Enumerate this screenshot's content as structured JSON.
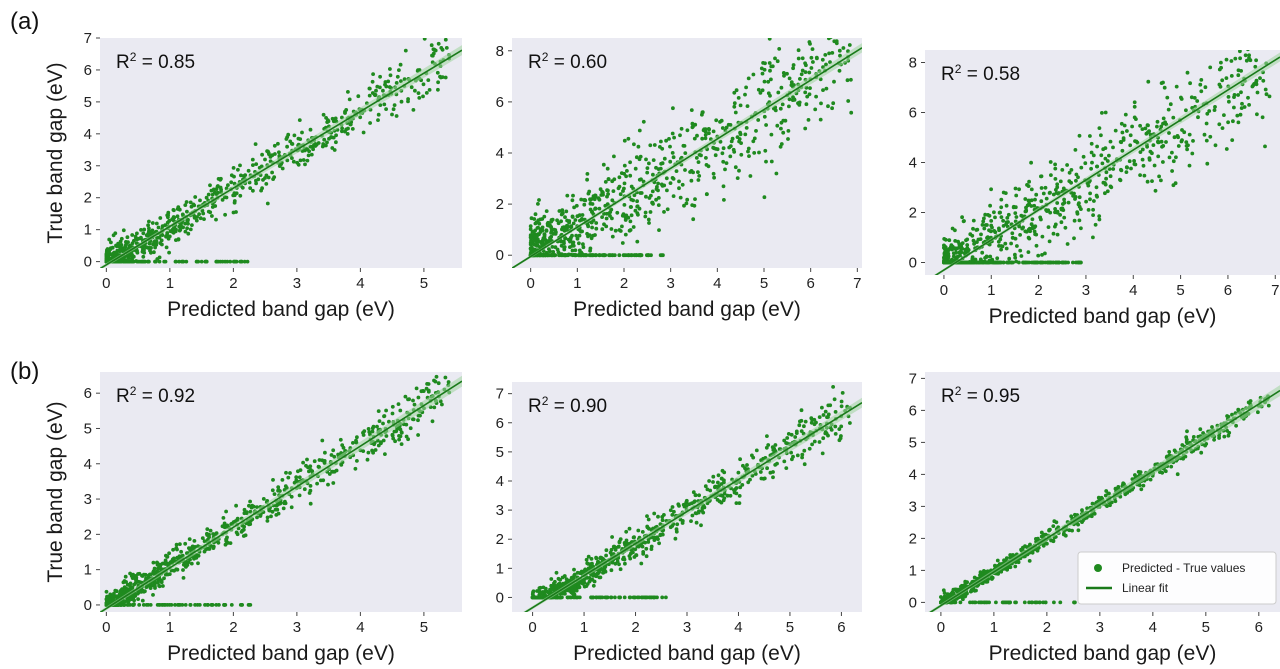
{
  "panel_labels": [
    "(a)",
    "(b)"
  ],
  "colors": {
    "points": "#1f8a1f",
    "fit_line": "#1a7a1a",
    "band": "#9fd39f",
    "plot_bg": "#eaeaf2"
  },
  "legend": {
    "points_label": "Predicted - True values",
    "line_label": "Linear fit"
  },
  "chart_data": [
    {
      "type": "scatter",
      "row": "a",
      "title": "",
      "annotation": "R² = 0.85",
      "r2_text": "0.85",
      "xlabel": "Predicted band gap (eV)",
      "ylabel": "True band gap (eV)",
      "xlim": [
        -0.1,
        5.6
      ],
      "ylim": [
        -0.2,
        7.0
      ],
      "xticks": [
        0,
        1,
        2,
        3,
        4,
        5
      ],
      "yticks": [
        0,
        1,
        2,
        3,
        4,
        5,
        6,
        7
      ],
      "fit": {
        "slope": 1.2,
        "intercept": -0.1
      },
      "n_points": 850,
      "max_x": 5.4,
      "noise": 0.38,
      "zero_frac": 0.09,
      "grid": false,
      "legend": false
    },
    {
      "type": "scatter",
      "row": "a",
      "title": "",
      "annotation": "R² = 0.60",
      "r2_text": "0.60",
      "xlabel": "Predicted band gap (eV)",
      "ylabel": "",
      "xlim": [
        -0.4,
        7.1
      ],
      "ylim": [
        -0.5,
        8.5
      ],
      "xticks": [
        0,
        1,
        2,
        3,
        4,
        5,
        6,
        7
      ],
      "yticks": [
        0,
        2,
        4,
        6,
        8
      ],
      "fit": {
        "slope": 1.15,
        "intercept": -0.05
      },
      "n_points": 950,
      "max_x": 6.9,
      "noise": 1.05,
      "zero_frac": 0.14,
      "grid": false,
      "legend": false
    },
    {
      "type": "scatter",
      "row": "a",
      "title": "",
      "annotation": "R² = 0.58",
      "r2_text": "0.58",
      "xlabel": "Predicted band gap (eV)",
      "ylabel": "",
      "xlim": [
        -0.4,
        7.1
      ],
      "ylim": [
        -0.5,
        8.5
      ],
      "xticks": [
        0,
        1,
        2,
        3,
        4,
        5,
        6,
        7
      ],
      "yticks": [
        0,
        2,
        4,
        6,
        8
      ],
      "fit": {
        "slope": 1.2,
        "intercept": -0.3
      },
      "n_points": 950,
      "max_x": 6.9,
      "noise": 1.1,
      "zero_frac": 0.14,
      "grid": false,
      "legend": false
    },
    {
      "type": "scatter",
      "row": "b",
      "title": "",
      "annotation": "R² = 0.92",
      "r2_text": "0.92",
      "xlabel": "Predicted band gap (eV)",
      "ylabel": "True band gap (eV)",
      "xlim": [
        -0.1,
        5.6
      ],
      "ylim": [
        -0.2,
        6.6
      ],
      "xticks": [
        0,
        1,
        2,
        3,
        4,
        5
      ],
      "yticks": [
        0,
        1,
        2,
        3,
        4,
        5,
        6
      ],
      "fit": {
        "slope": 1.15,
        "intercept": -0.1
      },
      "n_points": 900,
      "max_x": 5.4,
      "noise": 0.28,
      "zero_frac": 0.07,
      "grid": false,
      "legend": false
    },
    {
      "type": "scatter",
      "row": "b",
      "title": "",
      "annotation": "R² = 0.90",
      "r2_text": "0.90",
      "xlabel": "Predicted band gap (eV)",
      "ylabel": "",
      "xlim": [
        -0.4,
        6.4
      ],
      "ylim": [
        -0.5,
        7.4
      ],
      "xticks": [
        0,
        1,
        2,
        3,
        4,
        5,
        6
      ],
      "yticks": [
        0,
        1,
        2,
        3,
        4,
        5,
        6,
        7
      ],
      "fit": {
        "slope": 1.1,
        "intercept": -0.35
      },
      "n_points": 950,
      "max_x": 6.2,
      "noise": 0.35,
      "zero_frac": 0.1,
      "grid": false,
      "legend": false
    },
    {
      "type": "scatter",
      "row": "b",
      "title": "",
      "annotation": "R² = 0.95",
      "r2_text": "0.95",
      "xlabel": "Predicted band gap (eV)",
      "ylabel": "",
      "xlim": [
        -0.3,
        6.4
      ],
      "ylim": [
        -0.3,
        7.2
      ],
      "xticks": [
        0,
        1,
        2,
        3,
        4,
        5,
        6
      ],
      "yticks": [
        0,
        1,
        2,
        3,
        4,
        5,
        6,
        7
      ],
      "fit": {
        "slope": 1.05,
        "intercept": -0.1
      },
      "n_points": 900,
      "max_x": 6.2,
      "noise": 0.16,
      "zero_frac": 0.07,
      "grid": false,
      "legend": true,
      "legend_position": "lower-right"
    }
  ]
}
